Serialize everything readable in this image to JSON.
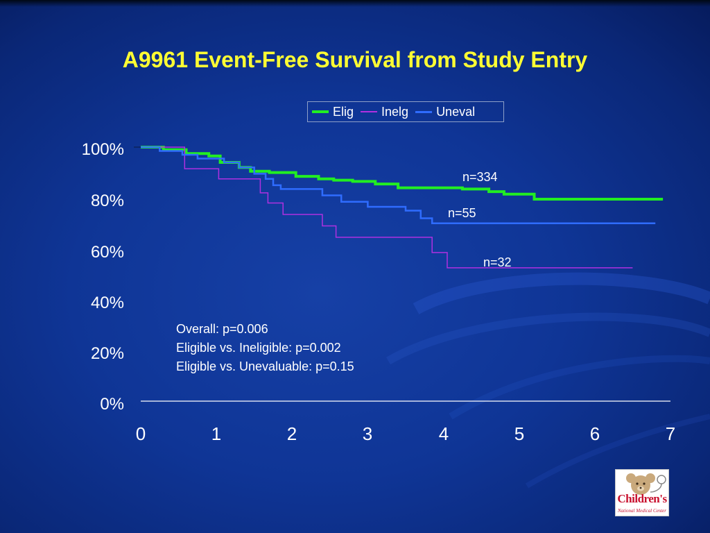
{
  "slide": {
    "title": "A9961 Event-Free Survival from Study Entry",
    "background_color": "#0f3596",
    "title_color": "#ffff33"
  },
  "chart_data": {
    "type": "line",
    "subtype": "kaplan-meier step curve",
    "title": "A9961 Event-Free Survival from Study Entry",
    "xlabel": "",
    "ylabel": "",
    "x_ticks": [
      "0",
      "1",
      "2",
      "3",
      "4",
      "5",
      "6",
      "7"
    ],
    "y_ticks": [
      "0%",
      "20%",
      "40%",
      "60%",
      "80%",
      "100%"
    ],
    "xlim": [
      0,
      7
    ],
    "ylim": [
      0,
      100
    ],
    "grid": false,
    "legend_position": "top-right",
    "series": [
      {
        "name": "Elig",
        "color": "#22ee22",
        "points": [
          [
            0,
            100
          ],
          [
            0.3,
            99
          ],
          [
            0.6,
            97.5
          ],
          [
            0.9,
            96.5
          ],
          [
            1.05,
            94
          ],
          [
            1.3,
            92
          ],
          [
            1.45,
            90.5
          ],
          [
            1.7,
            90
          ],
          [
            2.05,
            88.5
          ],
          [
            2.35,
            87.5
          ],
          [
            2.55,
            87
          ],
          [
            2.8,
            86.5
          ],
          [
            3.1,
            85.5
          ],
          [
            3.4,
            84
          ],
          [
            4.25,
            83.5
          ],
          [
            4.6,
            82.5
          ],
          [
            4.8,
            81.5
          ],
          [
            5.2,
            79.5
          ],
          [
            6.9,
            79.5
          ]
        ]
      },
      {
        "name": "Inelg",
        "color": "#b030e0",
        "points": [
          [
            0,
            100
          ],
          [
            0.55,
            100
          ],
          [
            0.58,
            91.5
          ],
          [
            1.03,
            87.5
          ],
          [
            1.58,
            82
          ],
          [
            1.68,
            78
          ],
          [
            1.88,
            73.5
          ],
          [
            2.4,
            69
          ],
          [
            2.58,
            64.5
          ],
          [
            3.85,
            58.5
          ],
          [
            4.05,
            52.5
          ],
          [
            6.5,
            52.5
          ]
        ]
      },
      {
        "name": "Uneval",
        "color": "#2f6cff",
        "points": [
          [
            0,
            100
          ],
          [
            0.25,
            98.5
          ],
          [
            0.55,
            97
          ],
          [
            0.75,
            95.5
          ],
          [
            1.1,
            94
          ],
          [
            1.3,
            92
          ],
          [
            1.5,
            89.5
          ],
          [
            1.65,
            87.5
          ],
          [
            1.75,
            85
          ],
          [
            1.85,
            83.5
          ],
          [
            2.4,
            81
          ],
          [
            2.65,
            78.5
          ],
          [
            3.0,
            76.5
          ],
          [
            3.5,
            75
          ],
          [
            3.7,
            72
          ],
          [
            3.85,
            70
          ],
          [
            6.8,
            70
          ]
        ]
      }
    ],
    "annotations": [
      {
        "text": "n=334",
        "series": "Elig"
      },
      {
        "text": "n=55",
        "series": "Uneval"
      },
      {
        "text": "n=32",
        "series": "Inelg"
      }
    ],
    "stats": [
      "Overall: p=0.006",
      "Eligible vs. Ineligible: p=0.002",
      "Eligible vs. Unevaluable: p=0.15"
    ]
  },
  "logo": {
    "text": "Children's",
    "subtext": "National Medical Center"
  }
}
